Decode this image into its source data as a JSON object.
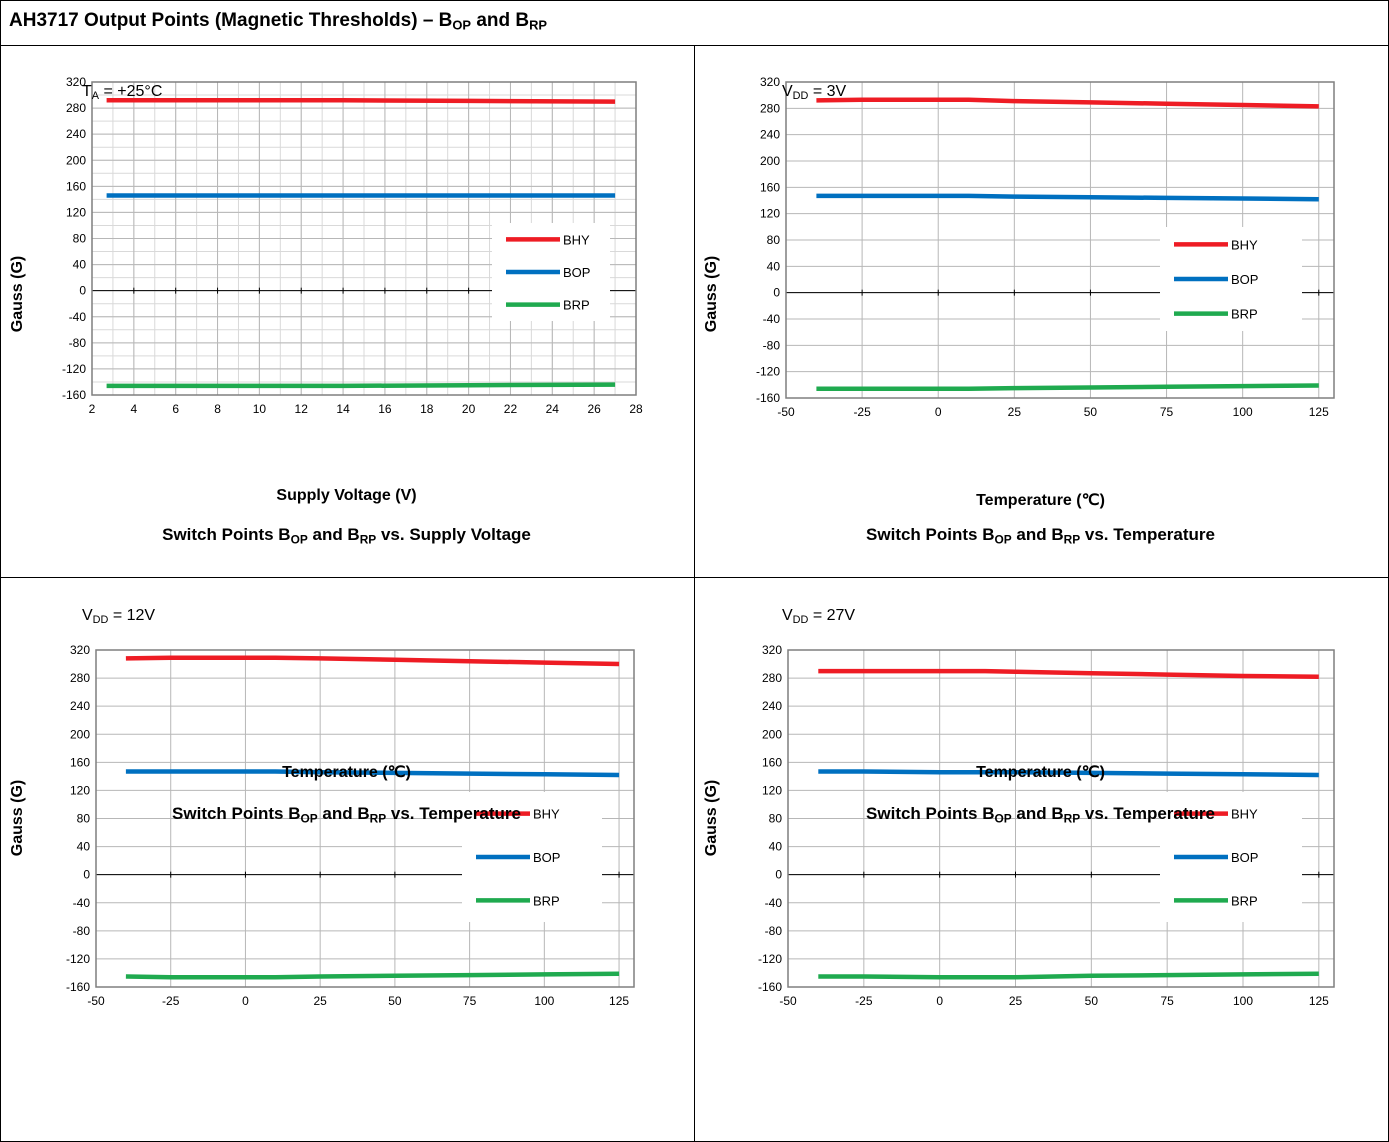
{
  "header": {
    "title_main": "AH3717 Output Points (Magnetic Thresholds) – B",
    "title_sub1": "OP",
    "title_and": " and B",
    "title_sub2": "RP"
  },
  "colors": {
    "BHY": "#ee1c24",
    "BOP": "#0070c0",
    "BRP": "#1faa4f",
    "grid": "#b7b7b7",
    "frame": "#7f7f7f"
  },
  "chart_data": [
    {
      "type": "line",
      "condition_main": "T",
      "condition_sub": "A",
      "condition_rest": " = +25°C",
      "xlabel": "Supply Voltage (V)",
      "ylabel": "Gauss (G)",
      "caption_a": "Switch Points B",
      "caption_sub1": "OP",
      "caption_b": " and B",
      "caption_sub2": "RP",
      "caption_c": " vs. Supply Voltage",
      "xlim": [
        2,
        28
      ],
      "xticks": [
        2,
        4,
        6,
        8,
        10,
        12,
        14,
        16,
        18,
        20,
        22,
        24,
        26,
        28
      ],
      "ylim": [
        -160,
        320
      ],
      "yticks": [
        320,
        280,
        240,
        200,
        160,
        120,
        80,
        40,
        0,
        -40,
        -80,
        -120,
        -160
      ],
      "minor_grid": true,
      "legend": [
        "BHY",
        "BOP",
        "BRP"
      ],
      "series": [
        {
          "name": "BHY",
          "x": [
            2.7,
            8,
            14,
            20,
            27
          ],
          "y": [
            292,
            292,
            292,
            291,
            290
          ]
        },
        {
          "name": "BOP",
          "x": [
            2.7,
            8,
            14,
            20,
            27
          ],
          "y": [
            146,
            146,
            146,
            146,
            146
          ]
        },
        {
          "name": "BRP",
          "x": [
            2.7,
            8,
            14,
            20,
            27
          ],
          "y": [
            -146,
            -146,
            -146,
            -145,
            -144
          ]
        }
      ]
    },
    {
      "type": "line",
      "condition_main": "V",
      "condition_sub": "DD",
      "condition_rest": " = 3V",
      "xlabel": "Temperature (℃)",
      "ylabel": "Gauss (G)",
      "caption_a": "Switch Points B",
      "caption_sub1": "OP",
      "caption_b": " and B",
      "caption_sub2": "RP",
      "caption_c": " vs. Temperature",
      "xlim": [
        -50,
        130
      ],
      "xticks": [
        -50,
        -25,
        0,
        25,
        50,
        75,
        100,
        125
      ],
      "ylim": [
        -160,
        320
      ],
      "yticks": [
        320,
        280,
        240,
        200,
        160,
        120,
        80,
        40,
        0,
        -40,
        -80,
        -120,
        -160
      ],
      "minor_grid": false,
      "legend": [
        "BHY",
        "BOP",
        "BRP"
      ],
      "series": [
        {
          "name": "BHY",
          "x": [
            -40,
            -25,
            0,
            10,
            25,
            50,
            75,
            100,
            125
          ],
          "y": [
            292,
            293,
            293,
            293,
            291,
            289,
            287,
            285,
            283
          ]
        },
        {
          "name": "BOP",
          "x": [
            -40,
            -25,
            0,
            10,
            25,
            50,
            75,
            100,
            125
          ],
          "y": [
            147,
            147,
            147,
            147,
            146,
            145,
            144,
            143,
            142
          ]
        },
        {
          "name": "BRP",
          "x": [
            -40,
            -25,
            0,
            10,
            25,
            50,
            75,
            100,
            125
          ],
          "y": [
            -146,
            -146,
            -146,
            -146,
            -145,
            -144,
            -143,
            -142,
            -141
          ]
        }
      ]
    },
    {
      "type": "line",
      "condition_main": "V",
      "condition_sub": "DD",
      "condition_rest": " = 12V",
      "xlabel": "Temperature (℃)",
      "ylabel": "Gauss (G)",
      "caption_a": "Switch Points B",
      "caption_sub1": "OP",
      "caption_b": " and B",
      "caption_sub2": "RP",
      "caption_c": " vs. Temperature",
      "xlim": [
        -50,
        130
      ],
      "xticks": [
        -50,
        -25,
        0,
        25,
        50,
        75,
        100,
        125
      ],
      "ylim": [
        -160,
        320
      ],
      "yticks": [
        320,
        280,
        240,
        200,
        160,
        120,
        80,
        40,
        0,
        -40,
        -80,
        -120,
        -160
      ],
      "minor_grid": false,
      "legend": [
        "BHY",
        "BOP",
        "BRP"
      ],
      "series": [
        {
          "name": "BHY",
          "x": [
            -40,
            -25,
            0,
            10,
            25,
            50,
            75,
            100,
            125
          ],
          "y": [
            308,
            309,
            309,
            309,
            308,
            306,
            304,
            302,
            300
          ]
        },
        {
          "name": "BOP",
          "x": [
            -40,
            -25,
            0,
            10,
            25,
            50,
            75,
            100,
            125
          ],
          "y": [
            147,
            147,
            147,
            147,
            146,
            145,
            144,
            143,
            142
          ]
        },
        {
          "name": "BRP",
          "x": [
            -40,
            -25,
            0,
            10,
            25,
            50,
            75,
            100,
            125
          ],
          "y": [
            -145,
            -146,
            -146,
            -146,
            -145,
            -144,
            -143,
            -142,
            -141
          ]
        }
      ]
    },
    {
      "type": "line",
      "condition_main": "V",
      "condition_sub": "DD",
      "condition_rest": " = 27V",
      "xlabel": "Temperature (℃)",
      "ylabel": "Gauss (G)",
      "caption_a": "Switch Points B",
      "caption_sub1": "OP",
      "caption_b": " and B",
      "caption_sub2": "RP",
      "caption_c": " vs. Temperature",
      "xlim": [
        -50,
        130
      ],
      "xticks": [
        -50,
        -25,
        0,
        25,
        50,
        75,
        100,
        125
      ],
      "ylim": [
        -160,
        320
      ],
      "yticks": [
        320,
        280,
        240,
        200,
        160,
        120,
        80,
        40,
        0,
        -40,
        -80,
        -120,
        -160
      ],
      "minor_grid": false,
      "legend": [
        "BHY",
        "BOP",
        "BRP"
      ],
      "series": [
        {
          "name": "BHY",
          "x": [
            -40,
            -25,
            0,
            15,
            25,
            50,
            75,
            100,
            125
          ],
          "y": [
            290,
            290,
            290,
            290,
            289,
            287,
            285,
            283,
            282
          ]
        },
        {
          "name": "BOP",
          "x": [
            -40,
            -25,
            0,
            15,
            25,
            50,
            75,
            100,
            125
          ],
          "y": [
            147,
            147,
            146,
            146,
            146,
            145,
            144,
            143,
            142
          ]
        },
        {
          "name": "BRP",
          "x": [
            -40,
            -25,
            0,
            15,
            25,
            50,
            75,
            100,
            125
          ],
          "y": [
            -145,
            -145,
            -146,
            -146,
            -146,
            -144,
            -143,
            -142,
            -141
          ]
        }
      ]
    }
  ]
}
